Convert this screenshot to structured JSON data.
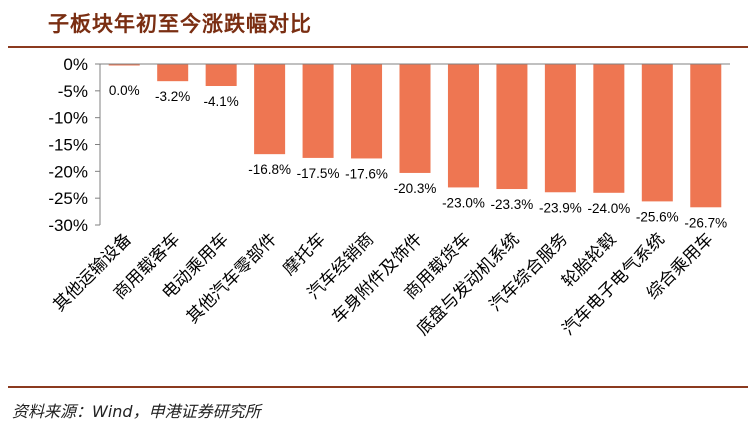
{
  "header": {
    "title": "子板块年初至今涨跌幅对比"
  },
  "footer": {
    "source": "资料来源：Wind，申港证券研究所"
  },
  "chart_data": {
    "type": "bar",
    "title": "子板块年初至今涨跌幅对比",
    "xlabel": "",
    "ylabel": "",
    "ylim": [
      -30,
      0
    ],
    "yticks": [
      0,
      -5,
      -10,
      -15,
      -20,
      -25,
      -30
    ],
    "ytick_labels": [
      "0%",
      "-5%",
      "-10%",
      "-15%",
      "-20%",
      "-25%",
      "-30%"
    ],
    "categories": [
      "其他运输设备",
      "商用载客车",
      "电动乘用车",
      "其他汽车零部件",
      "摩托车",
      "汽车经销商",
      "车身附件及饰件",
      "商用载货车",
      "底盘与发动机系统",
      "汽车综合服务",
      "轮胎轮毂",
      "汽车电子电气系统",
      "综合乘用车"
    ],
    "values": [
      0.0,
      -3.2,
      -4.1,
      -16.8,
      -17.5,
      -17.6,
      -20.3,
      -23.0,
      -23.3,
      -23.9,
      -24.0,
      -25.6,
      -26.7
    ],
    "data_labels": [
      "0.0%",
      "-3.2%",
      "-4.1%",
      "-16.8%",
      "-17.5%",
      "-17.6%",
      "-20.3%",
      "-23.0%",
      "-23.3%",
      "-23.9%",
      "-24.0%",
      "-25.6%",
      "-26.7%"
    ],
    "bar_color": "#EE7652",
    "grid": false,
    "legend": "none"
  }
}
